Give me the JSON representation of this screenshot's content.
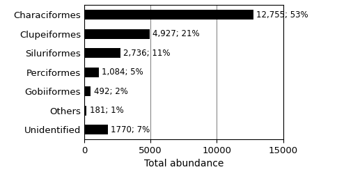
{
  "chart_data": {
    "type": "bar",
    "orientation": "horizontal",
    "categories": [
      "Characiformes",
      "Clupeiformes",
      "Siluriformes",
      "Perciformes",
      "Gobiiformes",
      "Others",
      "Unidentified"
    ],
    "values": [
      12755,
      4927,
      2736,
      1084,
      492,
      181,
      1770
    ],
    "value_labels": [
      "12,755; 53%",
      "4,927; 21%",
      "2,736; 11%",
      "1,084; 5%",
      "492; 2%",
      "181; 1%",
      "1770; 7%"
    ],
    "data_labels": true,
    "color": "#000000",
    "x_label": "Total abundance",
    "xlim": [
      0,
      15000
    ],
    "xticks": [
      0,
      5000,
      10000,
      15000
    ],
    "grid": true
  }
}
